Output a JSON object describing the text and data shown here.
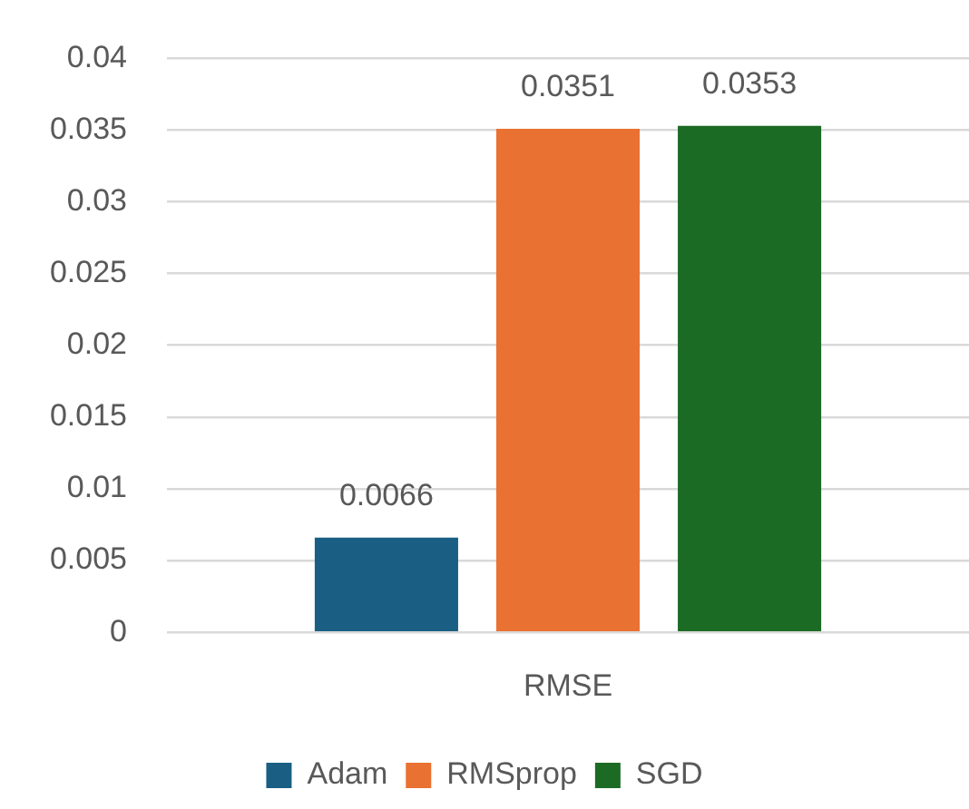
{
  "chart_data": {
    "type": "bar",
    "categories": [
      "RMSE"
    ],
    "series": [
      {
        "name": "Adam",
        "color": "#1a5f83",
        "values": [
          0.0066
        ]
      },
      {
        "name": "RMSprop",
        "color": "#e97132",
        "values": [
          0.0351
        ]
      },
      {
        "name": "SGD",
        "color": "#1c6b24",
        "values": [
          0.0353
        ]
      }
    ],
    "ylim": [
      0,
      0.04
    ],
    "yticks": [
      0,
      0.005,
      0.01,
      0.015,
      0.02,
      0.025,
      0.03,
      0.035,
      0.04
    ],
    "grid": "y",
    "legend": "bottom",
    "data_labels": true
  }
}
